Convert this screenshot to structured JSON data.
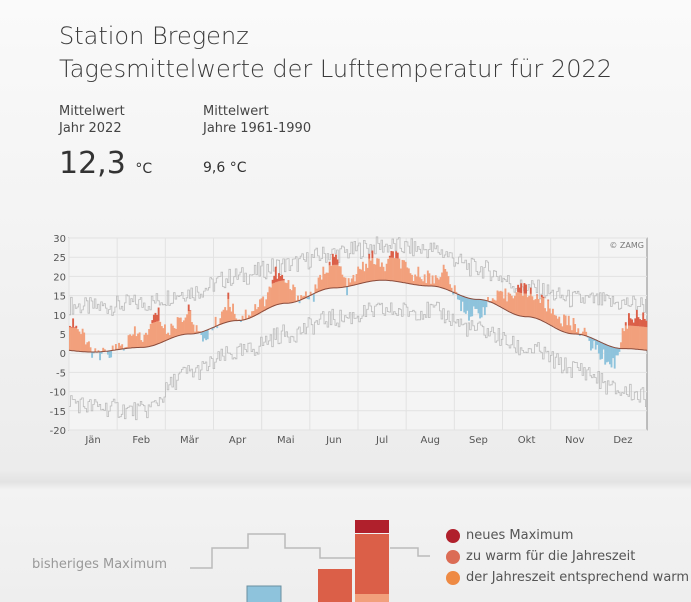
{
  "header": {
    "title": "Station Bregenz",
    "subtitle": "Tagesmittelwerte der Lufttemperatur für 2022"
  },
  "stats": {
    "year_label_1": "Mittelwert",
    "year_label_2": "Jahr 2022",
    "year_value": "12,3",
    "year_unit": "°C",
    "clim_label_1": "Mittelwert",
    "clim_label_2": "Jahre 1961-1990",
    "clim_value": "9,6 °C"
  },
  "chart_data": {
    "type": "area",
    "credit": "© ZAMG",
    "ylim": [
      -20,
      30
    ],
    "yticks": [
      30,
      25,
      20,
      15,
      10,
      5,
      0,
      -5,
      -10,
      -15,
      -20
    ],
    "categories": [
      "Jän",
      "Feb",
      "Mär",
      "Apr",
      "Mai",
      "Jun",
      "Jul",
      "Aug",
      "Sep",
      "Okt",
      "Nov",
      "Dez"
    ],
    "grid": true,
    "climate_mean_monthly": [
      0.3,
      1.5,
      5,
      8.5,
      13,
      17,
      19,
      17.5,
      14,
      9.5,
      5,
      1.2
    ],
    "record_max_monthly": [
      12,
      13,
      16,
      20,
      23,
      26,
      28,
      27,
      22,
      17,
      14,
      13
    ],
    "record_min_monthly": [
      -14,
      -15,
      -5,
      0,
      5,
      9,
      11,
      11,
      6,
      1,
      -4,
      -10
    ],
    "daily_2022": {
      "dates": [
        "2022-01-04",
        "2022-01-11",
        "2022-01-18",
        "2022-01-25",
        "2022-02-04",
        "2022-02-11",
        "2022-02-18",
        "2022-02-25",
        "2022-03-04",
        "2022-03-11",
        "2022-03-18",
        "2022-03-25",
        "2022-04-04",
        "2022-04-11",
        "2022-04-18",
        "2022-04-25",
        "2022-05-04",
        "2022-05-11",
        "2022-05-18",
        "2022-05-25",
        "2022-06-04",
        "2022-06-11",
        "2022-06-18",
        "2022-06-25",
        "2022-07-04",
        "2022-07-11",
        "2022-07-18",
        "2022-07-25",
        "2022-08-04",
        "2022-08-11",
        "2022-08-18",
        "2022-08-25",
        "2022-09-04",
        "2022-09-11",
        "2022-09-18",
        "2022-09-25",
        "2022-10-04",
        "2022-10-11",
        "2022-10-18",
        "2022-10-25",
        "2022-11-04",
        "2022-11-11",
        "2022-11-18",
        "2022-11-25",
        "2022-12-04",
        "2022-12-11",
        "2022-12-18",
        "2022-12-25"
      ],
      "values": [
        8,
        3,
        -1,
        0,
        2,
        5,
        4,
        11,
        5,
        9,
        11,
        3,
        8,
        14,
        9,
        11,
        14,
        21,
        18,
        15,
        15,
        22,
        25,
        17,
        22,
        25,
        22,
        26,
        20,
        21,
        19,
        22,
        13,
        10,
        11,
        14,
        15,
        17,
        16,
        14,
        10,
        8,
        7,
        3,
        -1,
        -3,
        8,
        10
      ]
    },
    "colors": {
      "new_max": "#b0202c",
      "too_warm": "#db5f48",
      "warm": "#f2a07c",
      "cold": "#8ec3dc",
      "record": "#bbbbbb"
    }
  },
  "legend": {
    "prev_max": "bisheriges Maximum",
    "items": [
      "neues Maximum",
      "zu warm für die Jahreszeit",
      "der Jahreszeit entsprechend warm"
    ]
  }
}
